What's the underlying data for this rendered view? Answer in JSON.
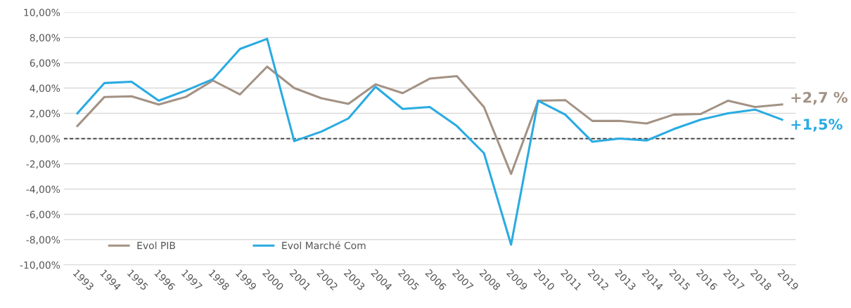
{
  "chart_data": {
    "type": "line",
    "categories": [
      "1993",
      "1994",
      "1995",
      "1996",
      "1997",
      "1998",
      "1999",
      "2000",
      "2001",
      "2002",
      "2003",
      "2004",
      "2005",
      "2006",
      "2007",
      "2008",
      "2009",
      "2010",
      "2011",
      "2012",
      "2013",
      "2014",
      "2015",
      "2016",
      "2017",
      "2018",
      "2019"
    ],
    "series": [
      {
        "name": "Evol PIB",
        "color": "#a39284",
        "values": [
          1.0,
          3.3,
          3.35,
          2.7,
          3.3,
          4.6,
          3.5,
          5.7,
          4.0,
          3.2,
          2.75,
          4.3,
          3.6,
          4.75,
          4.95,
          2.5,
          -2.8,
          3.0,
          3.05,
          1.4,
          1.4,
          1.2,
          1.9,
          1.95,
          3.0,
          2.5,
          2.7
        ]
      },
      {
        "name": "Evol Marché Com",
        "color": "#29abe2",
        "values": [
          2.0,
          4.4,
          4.5,
          3.0,
          3.8,
          4.7,
          7.1,
          7.9,
          -0.2,
          0.55,
          1.6,
          4.1,
          2.35,
          2.5,
          1.0,
          -1.15,
          -8.4,
          3.0,
          1.9,
          -0.25,
          0.0,
          -0.15,
          0.75,
          1.5,
          2.0,
          2.3,
          1.5
        ]
      }
    ],
    "ylim": [
      -10,
      10
    ],
    "yticks": [
      {
        "value": -10,
        "label": "-10,00%"
      },
      {
        "value": -8,
        "label": "-8,00%"
      },
      {
        "value": -6,
        "label": "-6,00%"
      },
      {
        "value": -4,
        "label": "-4,00%"
      },
      {
        "value": -2,
        "label": "-2,00%"
      },
      {
        "value": 0,
        "label": "0,00%"
      },
      {
        "value": 2,
        "label": "2,00%"
      },
      {
        "value": 4,
        "label": "4,00%"
      },
      {
        "value": 6,
        "label": "6,00%"
      },
      {
        "value": 8,
        "label": "8,00%"
      },
      {
        "value": 10,
        "label": "10,00%"
      }
    ],
    "ref_lines": [
      {
        "axis": "y",
        "value": 0,
        "color": "#333333",
        "line_style": "dashed"
      }
    ],
    "annotations": [
      {
        "text": "+2,7 %",
        "x": "2019",
        "y": 2.7
      },
      {
        "text": "+1,5%",
        "x": "2019",
        "y": 1.5
      }
    ],
    "grid": "y",
    "legend": "bottom left",
    "marker": "none",
    "line_style": "solid"
  }
}
